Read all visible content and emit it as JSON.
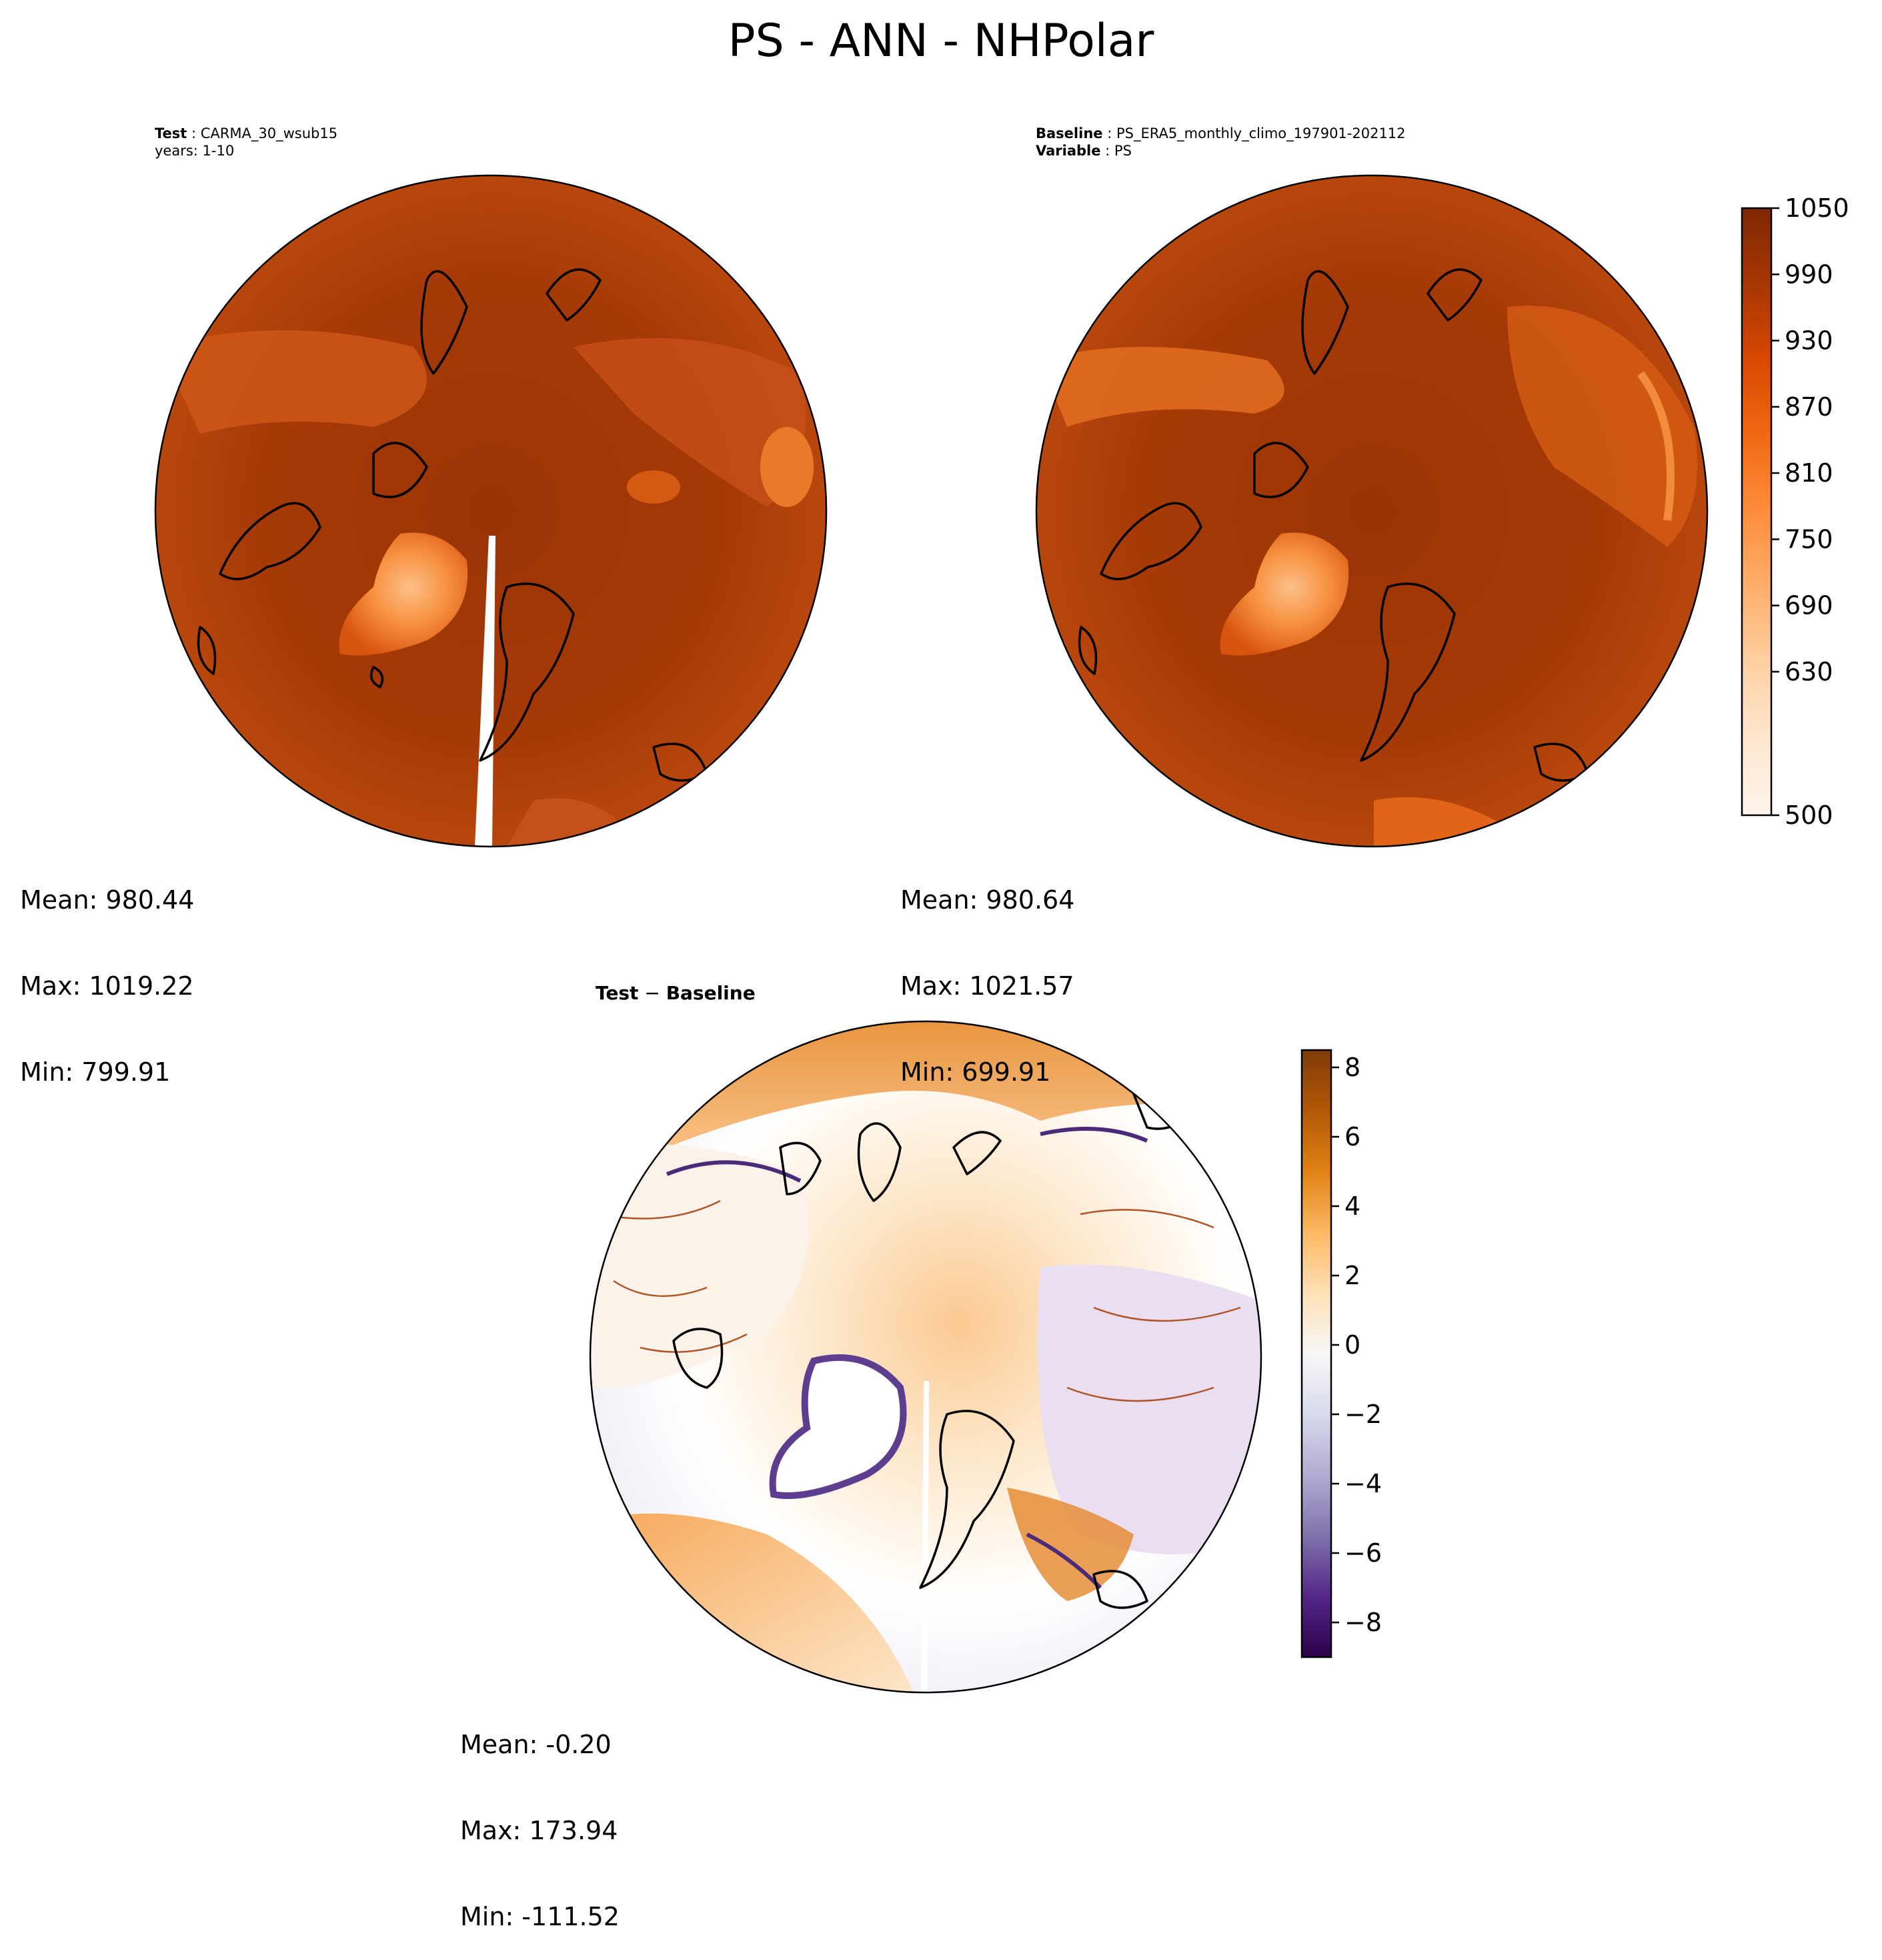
{
  "title": "PS - ANN - NHPolar",
  "panels": {
    "test": {
      "label_key": "Test",
      "label_value": "CARMA_30_wsub15",
      "label_line2": "years: 1-10",
      "mean": "Mean: 980.44",
      "max": "Max: 1019.22",
      "min": "Min: 799.91"
    },
    "baseline": {
      "label_key": "Baseline",
      "label_value": "PS_ERA5_monthly_climo_197901-202112",
      "label2_key": "Variable",
      "label2_value": "PS",
      "mean": "Mean: 980.64",
      "max": "Max: 1021.57",
      "min": "Min: 699.91"
    },
    "diff": {
      "title_a": "Test",
      "title_op": " − ",
      "title_b": "Baseline",
      "mean": "Mean: -0.20",
      "max": "Max: 173.94",
      "min": "Min: -111.52"
    }
  },
  "chart_data": [
    {
      "type": "heatmap",
      "name_ref": "test",
      "projection": "north-polar-stereographic",
      "variable": "PS",
      "stats": {
        "mean": 980.44,
        "max": 1019.22,
        "min": 799.91
      }
    },
    {
      "type": "heatmap",
      "name_ref": "baseline",
      "projection": "north-polar-stereographic",
      "variable": "PS",
      "stats": {
        "mean": 980.64,
        "max": 1021.57,
        "min": 699.91
      },
      "colorbar": {
        "range": [
          500,
          1050
        ],
        "ticks": [
          "500",
          "630",
          "690",
          "750",
          "810",
          "870",
          "930",
          "990",
          "1050"
        ],
        "tick_values": [
          500,
          630,
          690,
          750,
          810,
          870,
          930,
          990,
          1050
        ],
        "colors": [
          "#fff5eb",
          "#fee6ce",
          "#fdd0a2",
          "#fdae6b",
          "#fd8d3c",
          "#f16913",
          "#d94801",
          "#a63603",
          "#7f2704"
        ]
      }
    },
    {
      "type": "heatmap",
      "name_ref": "diff",
      "projection": "north-polar-stereographic",
      "variable": "PS",
      "stats": {
        "mean": -0.2,
        "max": 173.94,
        "min": -111.52
      },
      "colorbar": {
        "range": [
          -9,
          8.5
        ],
        "ticks": [
          "−8",
          "−6",
          "−4",
          "−2",
          "0",
          "2",
          "4",
          "6",
          "8"
        ],
        "tick_values": [
          -8,
          -6,
          -4,
          -2,
          0,
          2,
          4,
          6,
          8
        ],
        "colors": [
          "#2d004b",
          "#542788",
          "#8073ac",
          "#b2abd2",
          "#d8daeb",
          "#f7f7f7",
          "#fee0b6",
          "#fdb863",
          "#e08214",
          "#b35806",
          "#7f3b08"
        ]
      }
    }
  ]
}
